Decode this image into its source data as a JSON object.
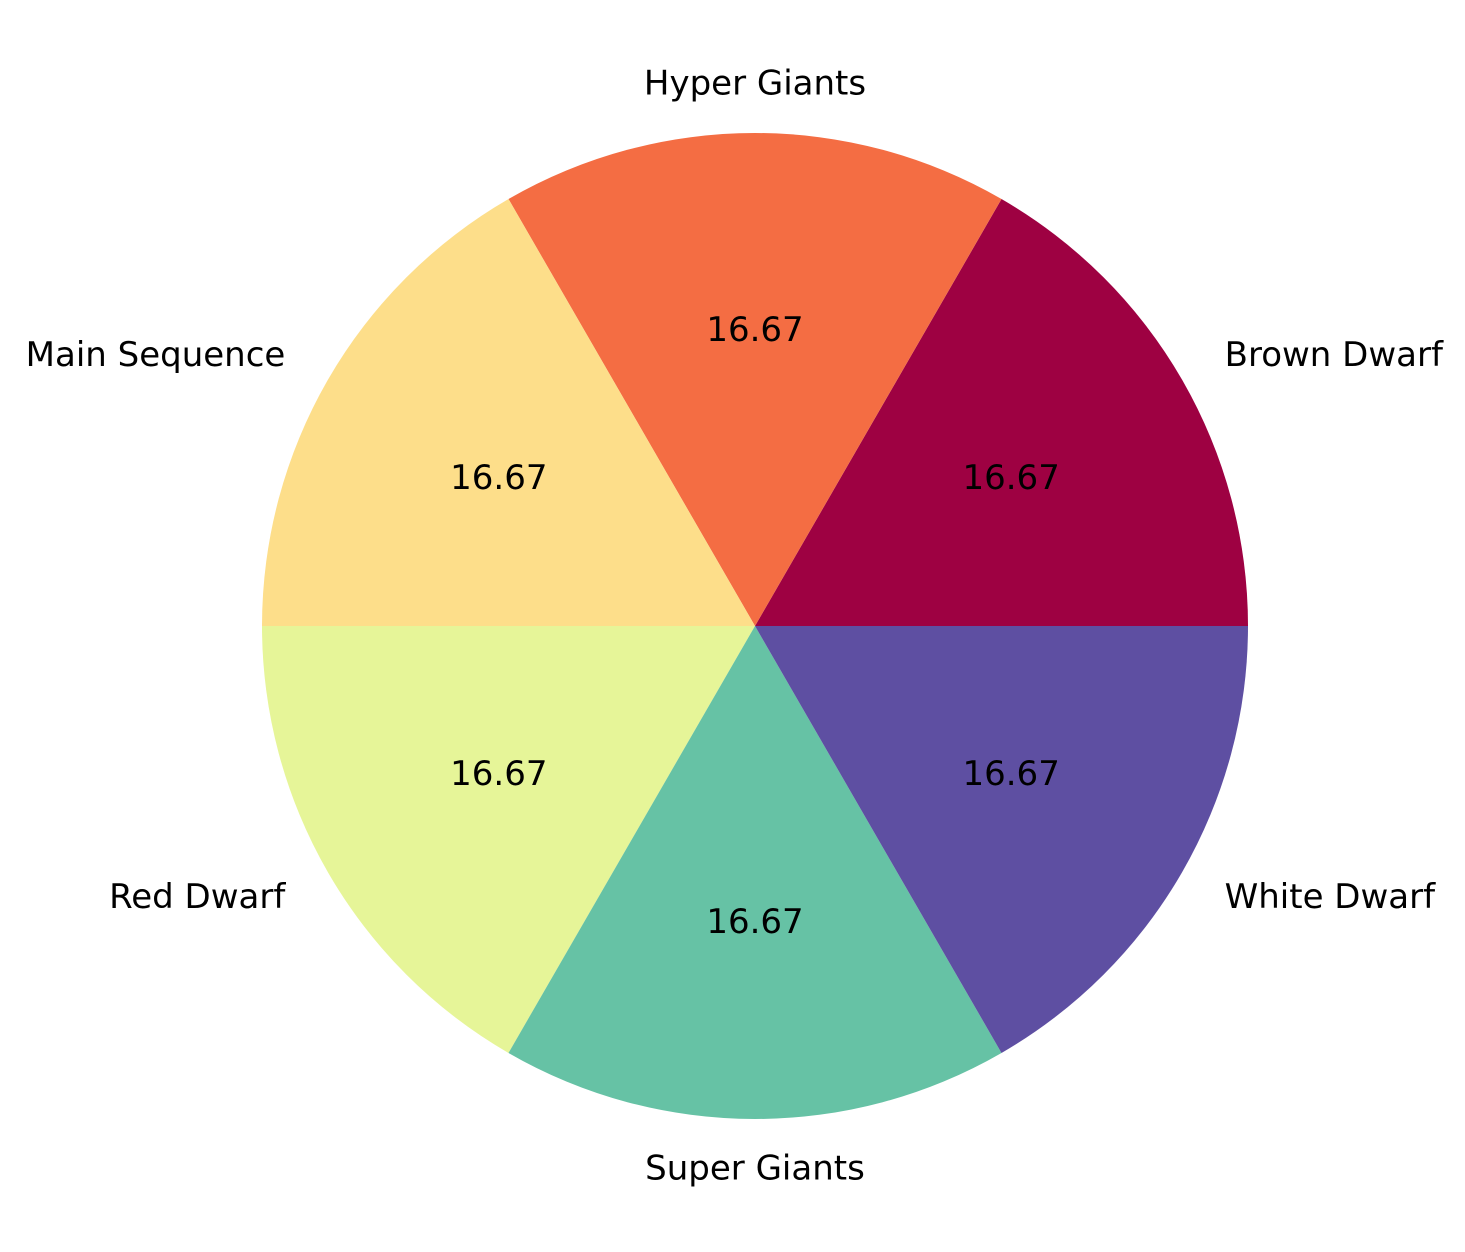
{
  "chart_data": {
    "type": "pie",
    "title": "",
    "start_angle_deg": 0,
    "direction": "counterclockwise",
    "value_format": "%.2f",
    "slices": [
      {
        "label": "Brown Dwarf",
        "value": 16.67,
        "color": "#9e0142"
      },
      {
        "label": "Hyper Giants",
        "value": 16.67,
        "color": "#f46d43"
      },
      {
        "label": "Main Sequence",
        "value": 16.67,
        "color": "#fdde8a"
      },
      {
        "label": "Red Dwarf",
        "value": 16.67,
        "color": "#e6f598"
      },
      {
        "label": "Super Giants",
        "value": 16.67,
        "color": "#66c2a5"
      },
      {
        "label": "White Dwarf",
        "value": 16.67,
        "color": "#5e4fa2"
      }
    ]
  }
}
